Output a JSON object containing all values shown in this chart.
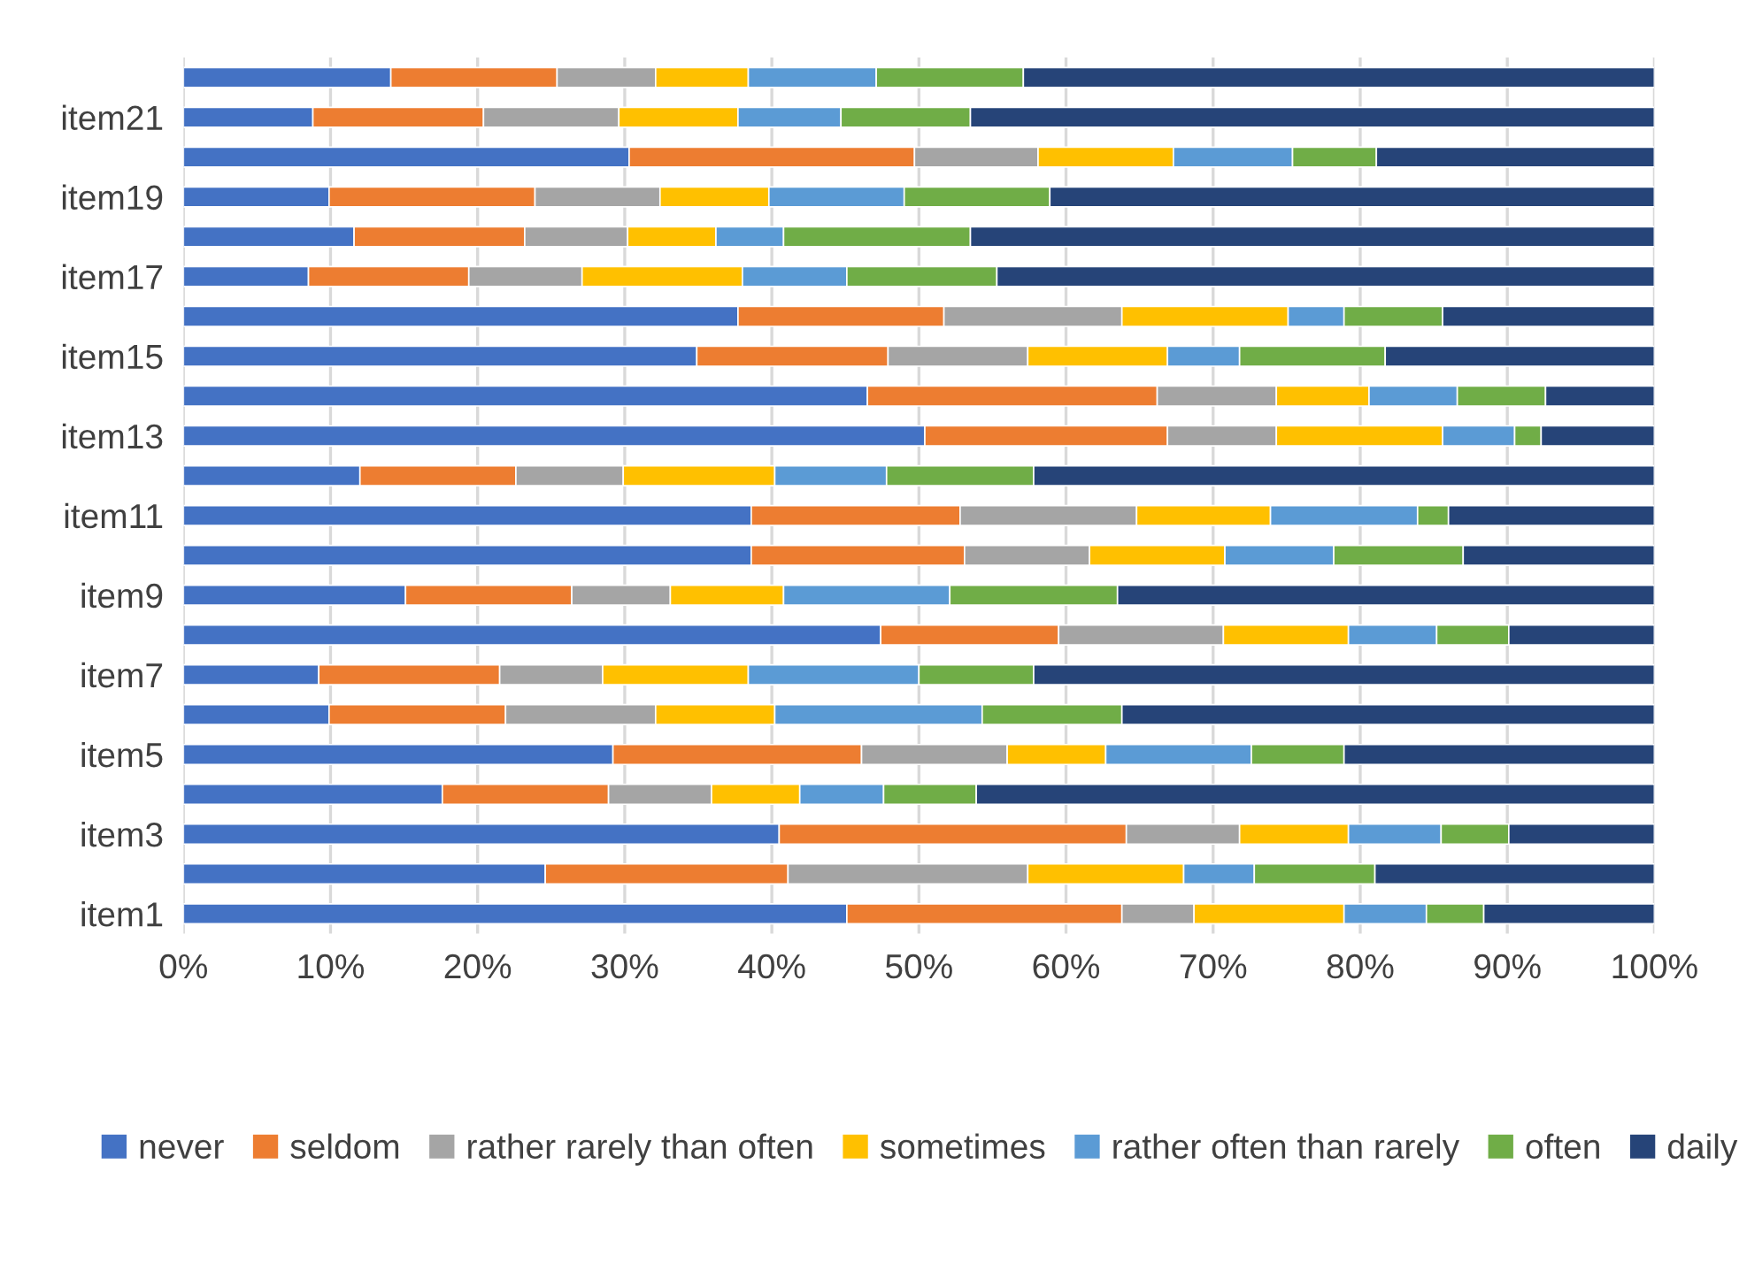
{
  "chart_data": {
    "type": "bar",
    "orientation": "horizontal",
    "stacked": true,
    "categories": [
      null,
      "item21",
      null,
      "item19",
      null,
      "item17",
      null,
      "item15",
      null,
      "item13",
      null,
      "item11",
      null,
      "item9",
      null,
      "item7",
      null,
      "item5",
      null,
      "item3",
      null,
      "item1"
    ],
    "series": [
      {
        "name": "never",
        "color": "#4472c4",
        "values": [
          14.1,
          8.8,
          30.3,
          9.9,
          11.6,
          8.5,
          37.7,
          34.9,
          46.5,
          50.4,
          12.0,
          38.6,
          38.6,
          15.1,
          47.4,
          9.2,
          9.9,
          29.2,
          17.6,
          40.5,
          24.6,
          45.1
        ]
      },
      {
        "name": "seldom",
        "color": "#ed7d31",
        "values": [
          11.3,
          11.6,
          19.4,
          14.0,
          11.6,
          10.9,
          14.0,
          13.0,
          19.7,
          16.5,
          10.6,
          14.2,
          14.5,
          11.3,
          12.1,
          12.3,
          12.0,
          16.9,
          11.3,
          23.6,
          16.5,
          18.7
        ]
      },
      {
        "name": "rather rarely than often",
        "color": "#a5a5a5",
        "values": [
          6.7,
          9.2,
          8.4,
          8.5,
          7.0,
          7.7,
          12.1,
          9.5,
          8.1,
          7.4,
          7.3,
          12.0,
          8.5,
          6.7,
          11.2,
          7.0,
          10.2,
          9.9,
          7.0,
          7.7,
          16.3,
          4.9
        ]
      },
      {
        "name": "sometimes",
        "color": "#ffc000",
        "values": [
          6.3,
          8.1,
          9.2,
          7.4,
          6.0,
          10.9,
          11.3,
          9.5,
          6.3,
          11.3,
          10.3,
          9.1,
          9.2,
          7.7,
          8.5,
          9.9,
          8.1,
          6.7,
          6.0,
          7.4,
          10.6,
          10.2
        ]
      },
      {
        "name": "rather often than rarely",
        "color": "#5b9bd5",
        "values": [
          8.7,
          7.0,
          8.1,
          9.2,
          4.6,
          7.1,
          3.8,
          4.9,
          6.0,
          4.9,
          7.6,
          10.0,
          7.4,
          11.3,
          6.0,
          11.6,
          14.1,
          9.9,
          5.7,
          6.3,
          4.8,
          5.6
        ]
      },
      {
        "name": "often",
        "color": "#70ad47",
        "values": [
          10.0,
          8.8,
          5.7,
          9.9,
          12.7,
          10.2,
          6.7,
          9.9,
          6.0,
          1.8,
          10.0,
          2.1,
          8.8,
          11.4,
          4.9,
          7.8,
          9.5,
          6.3,
          6.3,
          4.6,
          8.2,
          3.9
        ]
      },
      {
        "name": "daily",
        "color": "#264478",
        "values": [
          42.9,
          46.5,
          18.9,
          41.1,
          46.5,
          44.7,
          14.4,
          18.3,
          7.4,
          7.7,
          42.2,
          14.0,
          13.0,
          36.5,
          9.9,
          42.2,
          36.2,
          21.1,
          46.1,
          9.9,
          19.0,
          11.6
        ]
      }
    ],
    "xlim": [
      0,
      100
    ],
    "xticks": [
      {
        "value": 0,
        "label": "0%"
      },
      {
        "value": 10,
        "label": "10%"
      },
      {
        "value": 20,
        "label": "20%"
      },
      {
        "value": 30,
        "label": "30%"
      },
      {
        "value": 40,
        "label": "40%"
      },
      {
        "value": 50,
        "label": "50%"
      },
      {
        "value": 60,
        "label": "60%"
      },
      {
        "value": 70,
        "label": "70%"
      },
      {
        "value": 80,
        "label": "80%"
      },
      {
        "value": 90,
        "label": "90%"
      },
      {
        "value": 100,
        "label": "100%"
      }
    ],
    "grid": "x",
    "legend": "bottom"
  }
}
